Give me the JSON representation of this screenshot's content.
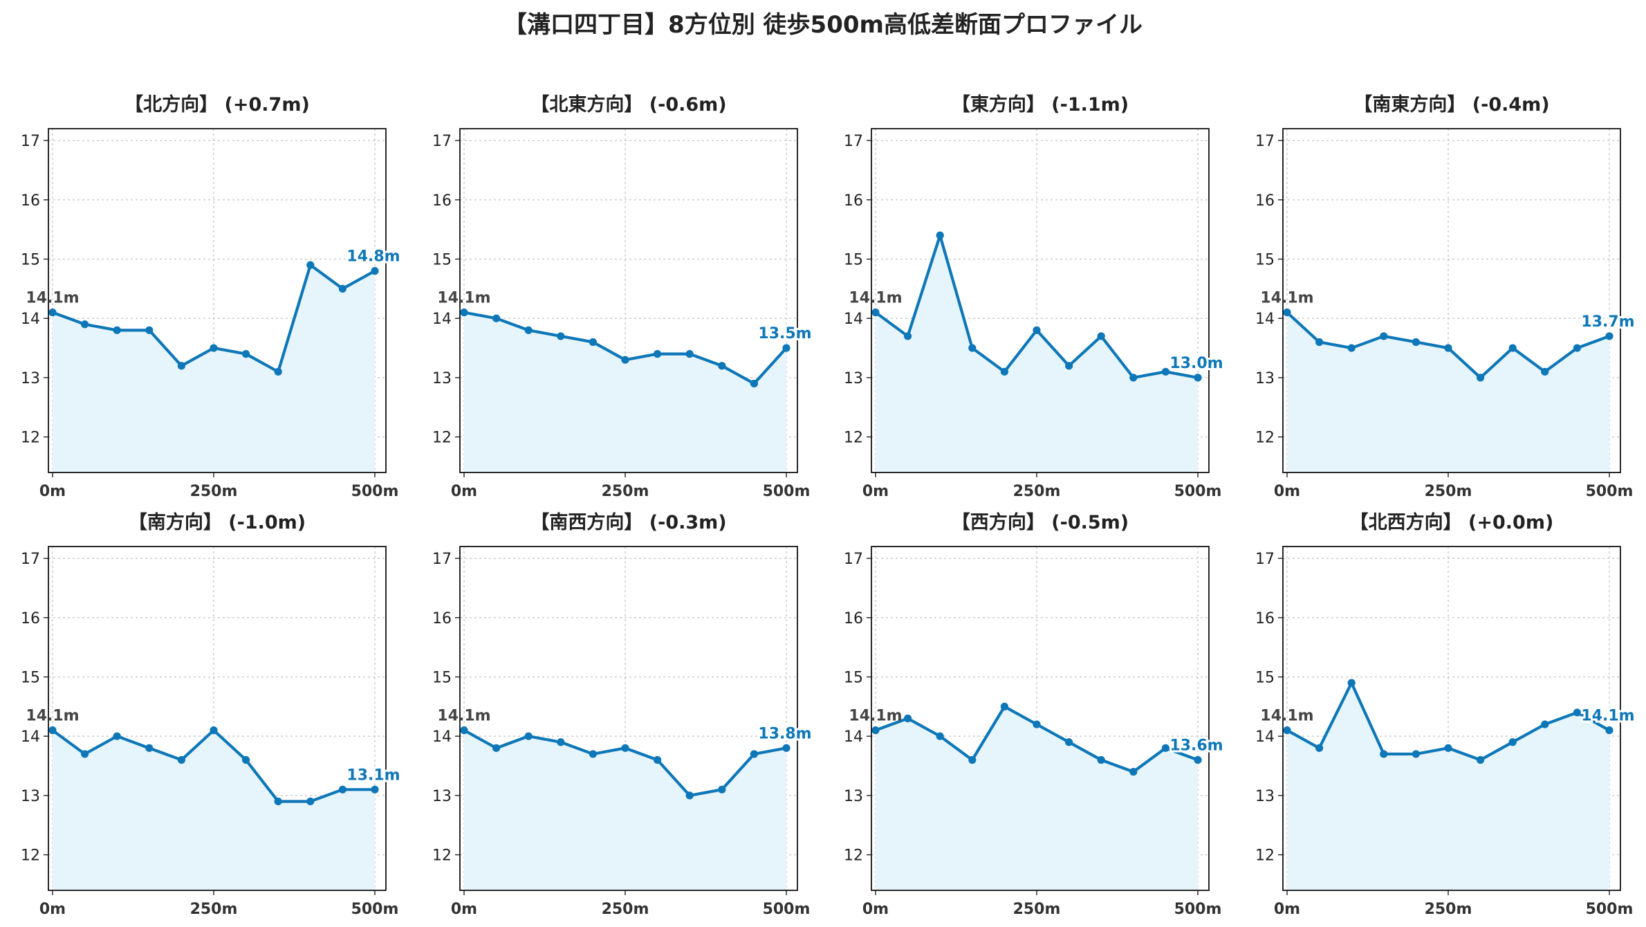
{
  "title": "【溝口四丁目】8方位別 徒歩500m高低差断面プロファイル",
  "colors": {
    "line": "#0d77b8",
    "fill": "#e6f5fb",
    "start_label": "#444444",
    "end_label": "#0d77b8",
    "grid": "#c8c8c8"
  },
  "chart_data": [
    {
      "type": "area",
      "title": "【北方向】 (+0.7m)",
      "x": [
        0,
        50,
        100,
        150,
        200,
        250,
        300,
        350,
        400,
        450,
        500
      ],
      "values": [
        14.1,
        13.9,
        13.8,
        13.8,
        13.2,
        13.5,
        13.4,
        13.1,
        14.9,
        14.5,
        14.8
      ],
      "xticks": [
        "0m",
        "250m",
        "500m"
      ],
      "yticks": [
        "12",
        "13",
        "14",
        "15",
        "16",
        "17"
      ],
      "start_label": "14.1m",
      "end_label": "14.8m",
      "ylim": [
        11.4,
        17.2
      ],
      "grid": true
    },
    {
      "type": "area",
      "title": "【北東方向】 (-0.6m)",
      "x": [
        0,
        50,
        100,
        150,
        200,
        250,
        300,
        350,
        400,
        450,
        500
      ],
      "values": [
        14.1,
        14.0,
        13.8,
        13.7,
        13.6,
        13.3,
        13.4,
        13.4,
        13.2,
        12.9,
        13.5
      ],
      "xticks": [
        "0m",
        "250m",
        "500m"
      ],
      "yticks": [
        "12",
        "13",
        "14",
        "15",
        "16",
        "17"
      ],
      "start_label": "14.1m",
      "end_label": "13.5m",
      "ylim": [
        11.4,
        17.2
      ],
      "grid": true
    },
    {
      "type": "area",
      "title": "【東方向】 (-1.1m)",
      "x": [
        0,
        50,
        100,
        150,
        200,
        250,
        300,
        350,
        400,
        450,
        500
      ],
      "values": [
        14.1,
        13.7,
        15.4,
        13.5,
        13.1,
        13.8,
        13.2,
        13.7,
        13.0,
        13.1,
        13.0
      ],
      "xticks": [
        "0m",
        "250m",
        "500m"
      ],
      "yticks": [
        "12",
        "13",
        "14",
        "15",
        "16",
        "17"
      ],
      "start_label": "14.1m",
      "end_label": "13.0m",
      "ylim": [
        11.4,
        17.2
      ],
      "grid": true
    },
    {
      "type": "area",
      "title": "【南東方向】 (-0.4m)",
      "x": [
        0,
        50,
        100,
        150,
        200,
        250,
        300,
        350,
        400,
        450,
        500
      ],
      "values": [
        14.1,
        13.6,
        13.5,
        13.7,
        13.6,
        13.5,
        13.0,
        13.5,
        13.1,
        13.5,
        13.7
      ],
      "xticks": [
        "0m",
        "250m",
        "500m"
      ],
      "yticks": [
        "12",
        "13",
        "14",
        "15",
        "16",
        "17"
      ],
      "start_label": "14.1m",
      "end_label": "13.7m",
      "ylim": [
        11.4,
        17.2
      ],
      "grid": true
    },
    {
      "type": "area",
      "title": "【南方向】 (-1.0m)",
      "x": [
        0,
        50,
        100,
        150,
        200,
        250,
        300,
        350,
        400,
        450,
        500
      ],
      "values": [
        14.1,
        13.7,
        14.0,
        13.8,
        13.6,
        14.1,
        13.6,
        12.9,
        12.9,
        13.1,
        13.1
      ],
      "xticks": [
        "0m",
        "250m",
        "500m"
      ],
      "yticks": [
        "12",
        "13",
        "14",
        "15",
        "16",
        "17"
      ],
      "start_label": "14.1m",
      "end_label": "13.1m",
      "ylim": [
        11.4,
        17.2
      ],
      "grid": true
    },
    {
      "type": "area",
      "title": "【南西方向】 (-0.3m)",
      "x": [
        0,
        50,
        100,
        150,
        200,
        250,
        300,
        350,
        400,
        450,
        500
      ],
      "values": [
        14.1,
        13.8,
        14.0,
        13.9,
        13.7,
        13.8,
        13.6,
        13.0,
        13.1,
        13.7,
        13.8
      ],
      "xticks": [
        "0m",
        "250m",
        "500m"
      ],
      "yticks": [
        "12",
        "13",
        "14",
        "15",
        "16",
        "17"
      ],
      "start_label": "14.1m",
      "end_label": "13.8m",
      "ylim": [
        11.4,
        17.2
      ],
      "grid": true
    },
    {
      "type": "area",
      "title": "【西方向】 (-0.5m)",
      "x": [
        0,
        50,
        100,
        150,
        200,
        250,
        300,
        350,
        400,
        450,
        500
      ],
      "values": [
        14.1,
        14.3,
        14.0,
        13.6,
        14.5,
        14.2,
        13.9,
        13.6,
        13.4,
        13.8,
        13.6
      ],
      "xticks": [
        "0m",
        "250m",
        "500m"
      ],
      "yticks": [
        "12",
        "13",
        "14",
        "15",
        "16",
        "17"
      ],
      "start_label": "14.1m",
      "end_label": "13.6m",
      "ylim": [
        11.4,
        17.2
      ],
      "grid": true
    },
    {
      "type": "area",
      "title": "【北西方向】 (+0.0m)",
      "x": [
        0,
        50,
        100,
        150,
        200,
        250,
        300,
        350,
        400,
        450,
        500
      ],
      "values": [
        14.1,
        13.8,
        14.9,
        13.7,
        13.7,
        13.8,
        13.6,
        13.9,
        14.2,
        14.4,
        14.1
      ],
      "xticks": [
        "0m",
        "250m",
        "500m"
      ],
      "yticks": [
        "12",
        "13",
        "14",
        "15",
        "16",
        "17"
      ],
      "start_label": "14.1m",
      "end_label": "14.1m",
      "ylim": [
        11.4,
        17.2
      ],
      "grid": true
    }
  ]
}
